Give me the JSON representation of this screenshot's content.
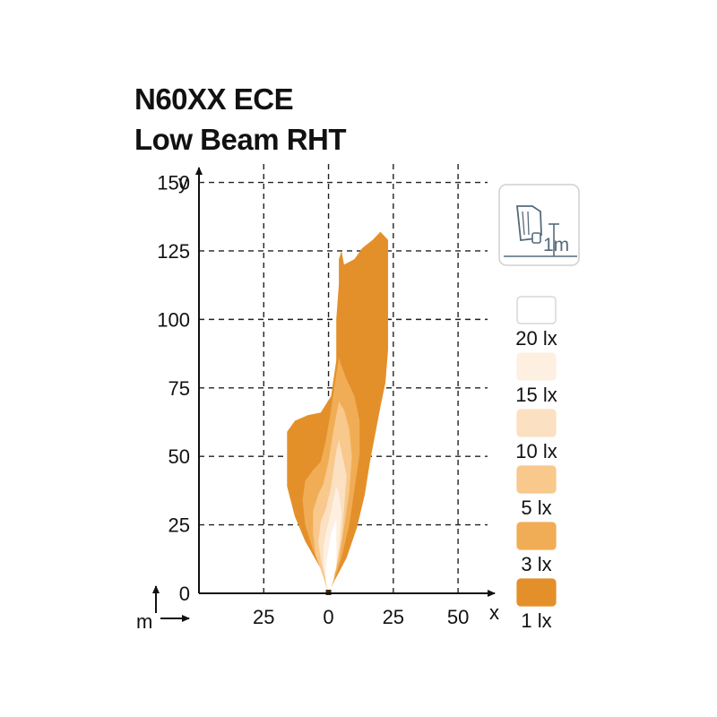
{
  "title": "N60XX ECE",
  "subtitle": "Low Beam RHT",
  "chart_data": {
    "type": "heatmap",
    "title": "N60XX ECE",
    "subtitle": "Low Beam RHT",
    "xlabel": "x",
    "ylabel": "y",
    "unit_label": "m",
    "xlim": [
      -50,
      60
    ],
    "ylim": [
      0,
      160
    ],
    "x_ticks": [
      {
        "value": -25,
        "label": "25"
      },
      {
        "value": 0,
        "label": "0"
      },
      {
        "value": 25,
        "label": "25"
      },
      {
        "value": 50,
        "label": "50"
      }
    ],
    "y_ticks": [
      0,
      25,
      50,
      75,
      100,
      125,
      150
    ],
    "grid": true,
    "mounting_height_label": "1m",
    "legend": [
      {
        "label": "20 lx",
        "color": "#ffffff"
      },
      {
        "label": "15 lx",
        "color": "#fdf0e1"
      },
      {
        "label": "10 lx",
        "color": "#fbe0c1"
      },
      {
        "label": "5 lx",
        "color": "#f8c88c"
      },
      {
        "label": "3 lx",
        "color": "#f1ad55"
      },
      {
        "label": "1 lx",
        "color": "#e4902a"
      }
    ],
    "isolux_contours": [
      {
        "level": "1 lx",
        "points": [
          [
            0,
            0
          ],
          [
            -3,
            9
          ],
          [
            -9,
            19
          ],
          [
            -13,
            28
          ],
          [
            -16,
            39
          ],
          [
            -16,
            51
          ],
          [
            -16,
            59
          ],
          [
            -13,
            63
          ],
          [
            -8,
            65
          ],
          [
            -3,
            66
          ],
          [
            1,
            72
          ],
          [
            3,
            85
          ],
          [
            3,
            100
          ],
          [
            4,
            113
          ],
          [
            4,
            122
          ],
          [
            5,
            125
          ],
          [
            6,
            120
          ],
          [
            10,
            122
          ],
          [
            13,
            126
          ],
          [
            17,
            129
          ],
          [
            20,
            132
          ],
          [
            23,
            129
          ],
          [
            23,
            117
          ],
          [
            23,
            103
          ],
          [
            23,
            89
          ],
          [
            22,
            77
          ],
          [
            20,
            68
          ],
          [
            18,
            58
          ],
          [
            16,
            48
          ],
          [
            14,
            36
          ],
          [
            11,
            24
          ],
          [
            7,
            13
          ],
          [
            2,
            4
          ]
        ]
      },
      {
        "level": "3 lx",
        "points": [
          [
            0,
            0
          ],
          [
            -2,
            7
          ],
          [
            -6,
            16
          ],
          [
            -9,
            25
          ],
          [
            -10,
            34
          ],
          [
            -9,
            41
          ],
          [
            -6,
            45
          ],
          [
            -3,
            48
          ],
          [
            -1,
            56
          ],
          [
            1,
            67
          ],
          [
            3,
            80
          ],
          [
            4,
            86
          ],
          [
            5,
            83
          ],
          [
            7,
            78
          ],
          [
            10,
            72
          ],
          [
            12,
            63
          ],
          [
            12,
            51
          ],
          [
            10,
            38
          ],
          [
            8,
            25
          ],
          [
            5,
            13
          ],
          [
            2,
            4
          ]
        ]
      },
      {
        "level": "5 lx",
        "points": [
          [
            0,
            0
          ],
          [
            -2,
            6
          ],
          [
            -5,
            14
          ],
          [
            -6,
            22
          ],
          [
            -6,
            30
          ],
          [
            -4,
            36
          ],
          [
            -2,
            40
          ],
          [
            0,
            48
          ],
          [
            2,
            60
          ],
          [
            4,
            70
          ],
          [
            6,
            67
          ],
          [
            8,
            60
          ],
          [
            9,
            50
          ],
          [
            8,
            37
          ],
          [
            6,
            24
          ],
          [
            4,
            12
          ],
          [
            1,
            4
          ]
        ]
      },
      {
        "level": "10 lx",
        "points": [
          [
            0,
            0
          ],
          [
            -1,
            5
          ],
          [
            -3,
            12
          ],
          [
            -4,
            19
          ],
          [
            -3,
            26
          ],
          [
            -1,
            31
          ],
          [
            1,
            39
          ],
          [
            3,
            52
          ],
          [
            4,
            56
          ],
          [
            5,
            52
          ],
          [
            7,
            43
          ],
          [
            6,
            31
          ],
          [
            5,
            20
          ],
          [
            3,
            10
          ],
          [
            1,
            3
          ]
        ]
      },
      {
        "level": "15 lx",
        "points": [
          [
            0,
            0
          ],
          [
            -1,
            4
          ],
          [
            -2,
            10
          ],
          [
            -2,
            17
          ],
          [
            -1,
            22
          ],
          [
            1,
            30
          ],
          [
            3,
            39
          ],
          [
            4,
            37
          ],
          [
            5,
            29
          ],
          [
            4,
            18
          ],
          [
            3,
            9
          ],
          [
            1,
            3
          ]
        ]
      },
      {
        "level": "20 lx",
        "points": [
          [
            0,
            0
          ],
          [
            -1,
            4
          ],
          [
            -1,
            10
          ],
          [
            0,
            16
          ],
          [
            1,
            22
          ],
          [
            3,
            27
          ],
          [
            3,
            19
          ],
          [
            3,
            11
          ],
          [
            2,
            5
          ],
          [
            1,
            2
          ]
        ]
      }
    ]
  }
}
